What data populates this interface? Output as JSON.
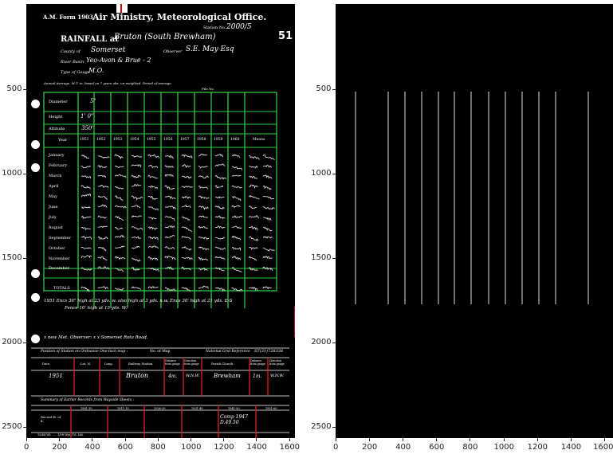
{
  "left_axes": {
    "x_ticks": [
      "0",
      "200",
      "400",
      "600",
      "800",
      "1000",
      "1200",
      "1400",
      "1600"
    ],
    "y_ticks": [
      "500",
      "1000",
      "1500",
      "2000",
      "2500"
    ]
  },
  "right_axes": {
    "x_ticks": [
      "0",
      "200",
      "400",
      "600",
      "800",
      "1000",
      "1200",
      "1400",
      "1600"
    ],
    "y_ticks": [
      "500",
      "1000",
      "1500",
      "2000",
      "2500"
    ]
  },
  "form": {
    "form_no": "A.M. Form 1903.",
    "office": "Air Ministry, Meteorological Office.",
    "station_no_label": "Station No.",
    "station_no": "2000/5",
    "page_no": "51",
    "rainfall_at_label": "RAINFALL at",
    "rainfall_at": "Bruton (South Brewham)",
    "county_label": "County of",
    "county": "Somerset",
    "observer_label": "Observer",
    "observer": "S.E. May Esq",
    "river_basin_label": "River Basin",
    "river_basin": "Yeo-Avon & Brue - 2",
    "gauge_label": "Type of Gauge",
    "gauge": "M.O.",
    "annual_average": "Annual Average. M.T. in. based on 7 years obs. un-weighted.  Period of average.",
    "file_label": "File No.",
    "diameter_label": "Diameter",
    "diameter": "5\"",
    "height_label": "Height",
    "height": "1' 0\"",
    "altitude_label": "Altitude",
    "altitude": "350'",
    "year_label": "Year",
    "years": [
      "1951",
      "1952",
      "1953",
      "1954",
      "1955",
      "1956",
      "1957",
      "1958",
      "1959",
      "1960"
    ],
    "means_label": "Means",
    "months": [
      "January",
      "February",
      "March",
      "April",
      "May",
      "June",
      "July",
      "August",
      "September",
      "October",
      "November",
      "December"
    ],
    "totals_label": "TOTALS",
    "notes": [
      "1951  Encs 36\" high at 23 yds. w. also high  at 3 yds. n.w.  Encs 30' high at 21 yds. E-S",
      "Fence 10' high at 15 yds. W.",
      "x  new Met. Observer: x x  Somerset Rota Road."
    ],
    "ordnance_title": "Position of Station on Ordnance One-Inch map :",
    "map_no_label": "No. of Map",
    "grid_ref_label": "National Grid Reference",
    "grid_ref": "ST(31)728338",
    "cols": [
      "Date.",
      "Lat. N.",
      "Long.",
      "Railway Station.",
      "Distance from gauge",
      "Direction from gauge",
      "Parish Church.",
      "Distance from gauge",
      "Direction from gauge"
    ],
    "row_date": "1951",
    "row_station": "Bruton",
    "row_dist": "4m.",
    "row_dir": "W.N.W.",
    "row_church": "Brewham",
    "row_dist2": "1m.",
    "row_dir2": "W.N.W.",
    "summary_title": "Summary of Earlier Records from Wayside Sheets :",
    "periods": [
      "1901-10",
      "1911-15",
      "1926-35",
      "1931-40",
      "1941-50",
      "1951-60"
    ],
    "record_label": "Record B. of 4.",
    "record_note": "Comp 1947 D.49.50",
    "footer": "19/44  Wt. ..... 1/58  Wyt.  T.S.  Ltd."
  }
}
